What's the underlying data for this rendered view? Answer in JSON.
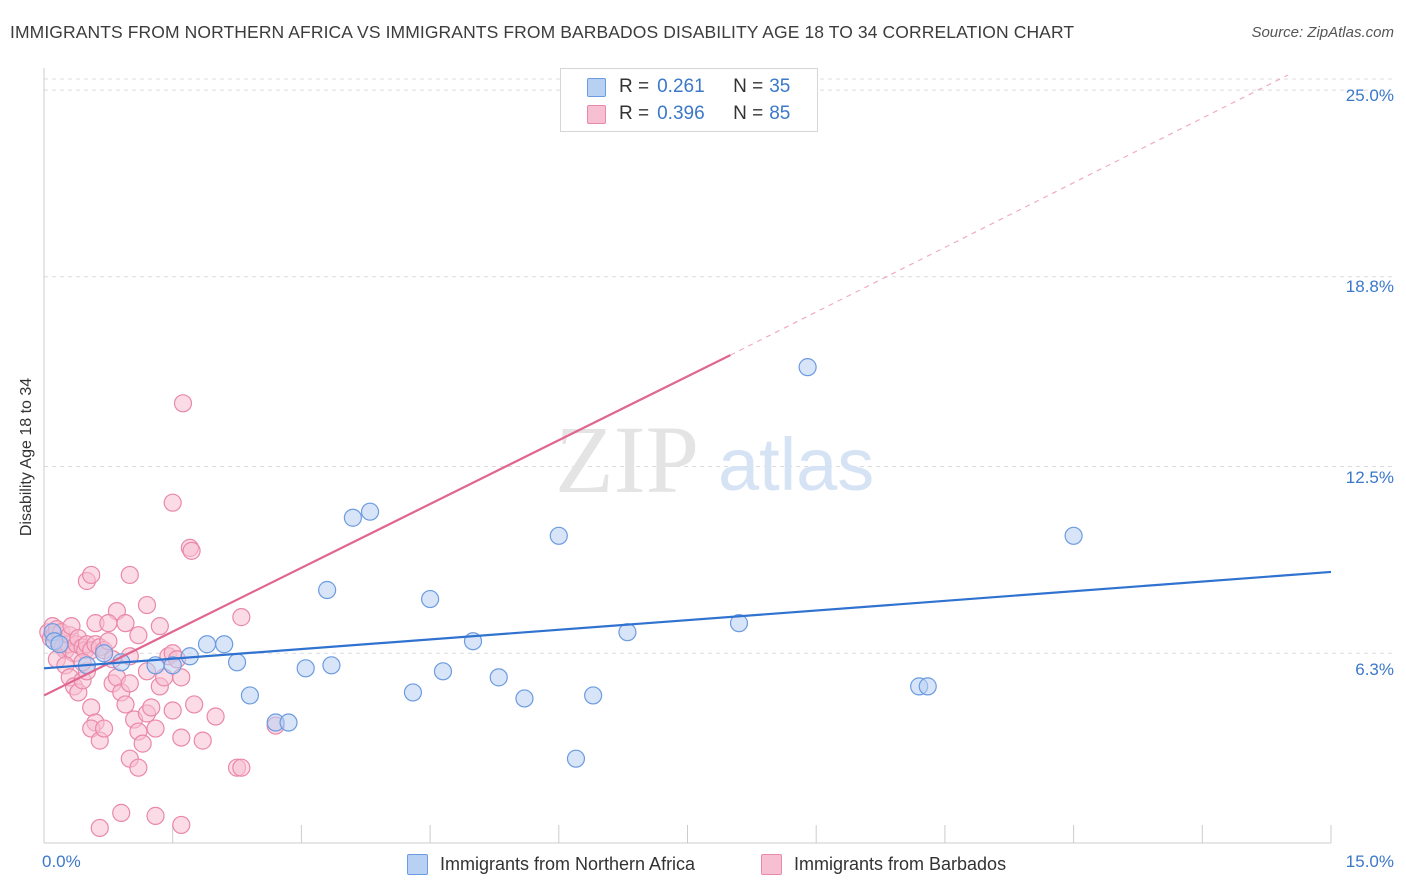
{
  "header": {
    "title": "IMMIGRANTS FROM NORTHERN AFRICA VS IMMIGRANTS FROM BARBADOS DISABILITY AGE 18 TO 34 CORRELATION CHART",
    "source": "Source: ZipAtlas.com"
  },
  "watermark": {
    "zip": "ZIP",
    "atlas": "atlas"
  },
  "legend": {
    "series1": {
      "r_label": "R = ",
      "r_value": "0.261",
      "n_label": "N = ",
      "n_value": "35"
    },
    "series2": {
      "r_label": "R = ",
      "r_value": "0.396",
      "n_label": "N = ",
      "n_value": "85"
    }
  },
  "colors": {
    "blue_fill": "#b8d0f2",
    "blue_stroke": "#6b9be0",
    "blue_line": "#2f72d0",
    "pink_fill": "#f7c0d2",
    "pink_stroke": "#ea88a8",
    "pink_line": "#e0668f",
    "tick_text": "#3b78c9",
    "grid": "#dcdcdc"
  },
  "chart_data": {
    "type": "scatter",
    "title": "IMMIGRANTS FROM NORTHERN AFRICA VS IMMIGRANTS FROM BARBADOS DISABILITY AGE 18 TO 34 CORRELATION CHART",
    "xlabel": "",
    "ylabel": "Disability Age 18 to 34",
    "xlim": [
      0,
      15
    ],
    "ylim": [
      0,
      25.6
    ],
    "x_tick_labels": [
      "0.0%",
      "15.0%"
    ],
    "y_ticks": [
      6.3,
      12.5,
      18.8,
      25.0
    ],
    "y_tick_labels": [
      "6.3%",
      "12.5%",
      "18.8%",
      "25.0%"
    ],
    "grid": true,
    "series": [
      {
        "name": "Immigrants from Northern Africa",
        "color": "blue",
        "r": 0.261,
        "n": 35,
        "points": [
          [
            0.1,
            7.0
          ],
          [
            0.12,
            6.7
          ],
          [
            0.18,
            6.6
          ],
          [
            0.5,
            5.9
          ],
          [
            0.7,
            6.3
          ],
          [
            0.9,
            6.0
          ],
          [
            1.3,
            5.9
          ],
          [
            1.5,
            5.9
          ],
          [
            1.7,
            6.2
          ],
          [
            1.9,
            6.6
          ],
          [
            2.1,
            6.6
          ],
          [
            2.25,
            6.0
          ],
          [
            2.4,
            4.9
          ],
          [
            2.7,
            4.0
          ],
          [
            2.85,
            4.0
          ],
          [
            3.05,
            5.8
          ],
          [
            3.3,
            8.4
          ],
          [
            3.35,
            5.9
          ],
          [
            3.6,
            10.8
          ],
          [
            3.8,
            11.0
          ],
          [
            4.3,
            5.0
          ],
          [
            4.5,
            8.1
          ],
          [
            4.65,
            5.7
          ],
          [
            5.0,
            6.7
          ],
          [
            5.3,
            5.5
          ],
          [
            5.6,
            4.8
          ],
          [
            6.0,
            10.2
          ],
          [
            6.2,
            2.8
          ],
          [
            6.4,
            4.9
          ],
          [
            6.8,
            7.0
          ],
          [
            8.1,
            7.3
          ],
          [
            8.9,
            15.8
          ],
          [
            10.2,
            5.2
          ],
          [
            10.3,
            5.2
          ],
          [
            12.0,
            10.2
          ]
        ],
        "trend": {
          "x": [
            0,
            15
          ],
          "y": [
            5.8,
            9.0
          ]
        }
      },
      {
        "name": "Immigrants from Barbados",
        "color": "pink",
        "r": 0.396,
        "n": 85,
        "points": [
          [
            0.05,
            7.0
          ],
          [
            0.08,
            6.8
          ],
          [
            0.1,
            7.2
          ],
          [
            0.12,
            6.9
          ],
          [
            0.15,
            7.1
          ],
          [
            0.18,
            6.7
          ],
          [
            0.2,
            7.0
          ],
          [
            0.22,
            6.5
          ],
          [
            0.25,
            6.4
          ],
          [
            0.28,
            6.6
          ],
          [
            0.3,
            6.9
          ],
          [
            0.32,
            7.2
          ],
          [
            0.35,
            6.3
          ],
          [
            0.38,
            6.6
          ],
          [
            0.4,
            6.8
          ],
          [
            0.45,
            6.5
          ],
          [
            0.48,
            6.4
          ],
          [
            0.5,
            6.6
          ],
          [
            0.55,
            6.4
          ],
          [
            0.6,
            6.6
          ],
          [
            0.65,
            6.5
          ],
          [
            0.7,
            6.4
          ],
          [
            0.75,
            6.7
          ],
          [
            0.15,
            6.1
          ],
          [
            0.25,
            5.9
          ],
          [
            0.3,
            5.5
          ],
          [
            0.35,
            5.2
          ],
          [
            0.4,
            5.0
          ],
          [
            0.45,
            5.4
          ],
          [
            0.5,
            5.7
          ],
          [
            0.55,
            4.5
          ],
          [
            0.6,
            4.0
          ],
          [
            0.55,
            3.8
          ],
          [
            0.65,
            3.4
          ],
          [
            0.7,
            3.8
          ],
          [
            0.8,
            5.3
          ],
          [
            0.85,
            5.5
          ],
          [
            0.9,
            5.0
          ],
          [
            0.95,
            4.6
          ],
          [
            1.0,
            5.3
          ],
          [
            1.05,
            4.1
          ],
          [
            1.1,
            3.7
          ],
          [
            1.15,
            3.3
          ],
          [
            1.2,
            4.3
          ],
          [
            1.25,
            4.5
          ],
          [
            1.3,
            3.8
          ],
          [
            1.35,
            5.2
          ],
          [
            1.4,
            5.5
          ],
          [
            1.45,
            6.2
          ],
          [
            1.5,
            4.4
          ],
          [
            1.6,
            3.5
          ],
          [
            0.5,
            8.7
          ],
          [
            0.55,
            8.9
          ],
          [
            1.0,
            8.9
          ],
          [
            0.85,
            7.7
          ],
          [
            1.2,
            7.9
          ],
          [
            1.35,
            7.2
          ],
          [
            0.6,
            7.3
          ],
          [
            0.75,
            7.3
          ],
          [
            0.95,
            7.3
          ],
          [
            1.1,
            6.9
          ],
          [
            1.5,
            6.3
          ],
          [
            1.6,
            5.5
          ],
          [
            1.75,
            4.6
          ],
          [
            1.85,
            3.4
          ],
          [
            1.5,
            11.3
          ],
          [
            1.7,
            9.8
          ],
          [
            1.72,
            9.7
          ],
          [
            1.62,
            14.6
          ],
          [
            2.3,
            7.5
          ],
          [
            2.25,
            2.5
          ],
          [
            2.3,
            2.5
          ],
          [
            2.7,
            3.9
          ],
          [
            1.0,
            2.8
          ],
          [
            1.1,
            2.5
          ],
          [
            0.9,
            1.0
          ],
          [
            1.3,
            0.9
          ],
          [
            1.6,
            0.6
          ],
          [
            0.65,
            0.5
          ],
          [
            1.0,
            6.2
          ],
          [
            1.55,
            6.1
          ],
          [
            1.2,
            5.7
          ],
          [
            2.0,
            4.2
          ],
          [
            0.8,
            6.1
          ],
          [
            0.45,
            6.0
          ]
        ],
        "trend": {
          "x": [
            0,
            8.0
          ],
          "y": [
            4.9,
            16.2
          ]
        },
        "trend_extension": {
          "x": [
            8.0,
            14.5
          ],
          "y": [
            16.2,
            25.5
          ]
        }
      }
    ]
  },
  "bottom_legend": {
    "item1": "Immigrants from Northern Africa",
    "item2": "Immigrants from Barbados"
  }
}
